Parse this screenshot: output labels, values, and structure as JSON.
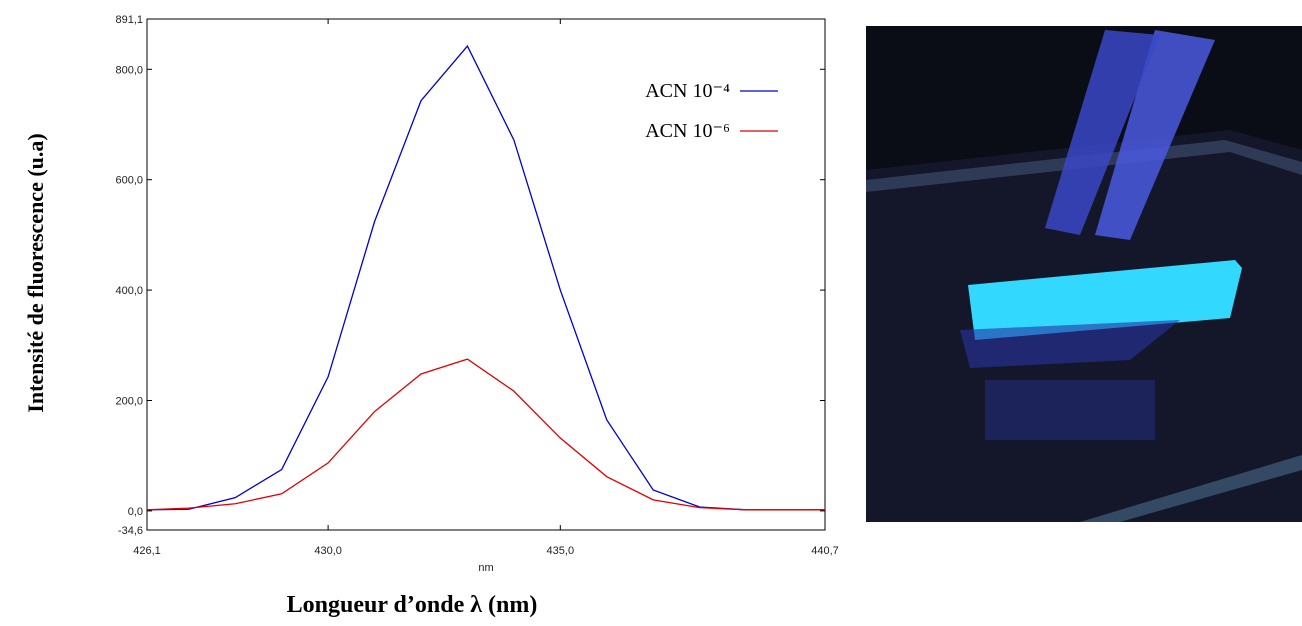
{
  "chart_data": {
    "type": "line",
    "ylabel": "Intensité de fluorescence (u.a)",
    "xlabel": "Longueur d’onde λ (nm)",
    "x_unit_label": "nm",
    "x": [
      426.1,
      427,
      428,
      429,
      430,
      431,
      432,
      433,
      434,
      435,
      436,
      437,
      438,
      439,
      440,
      440.7
    ],
    "series": [
      {
        "name": "ACN 10⁻⁴",
        "color": "#0000cc",
        "values": [
          2,
          3,
          24,
          75,
          243,
          524,
          743,
          842,
          672,
          400,
          165,
          38,
          7,
          2,
          2,
          2
        ]
      },
      {
        "name": "ACN 10⁻⁶",
        "color": "#e00000",
        "values": [
          2,
          5,
          13,
          31,
          87,
          180,
          248,
          275,
          217,
          132,
          62,
          20,
          6,
          2,
          2,
          2
        ]
      }
    ],
    "xlim": [
      426.1,
      440.7
    ],
    "xticks": [
      {
        "value": 426.1,
        "label": "426,1"
      },
      {
        "value": 430,
        "label": "430,0"
      },
      {
        "value": 435,
        "label": "435,0"
      },
      {
        "value": 440.7,
        "label": "440,7"
      }
    ],
    "ylim": [
      -34.6,
      891.1
    ],
    "yticks": [
      {
        "value": -34.6,
        "label": "-34,6"
      },
      {
        "value": 0,
        "label": "0,0"
      },
      {
        "value": 200,
        "label": "200,0"
      },
      {
        "value": 400,
        "label": "400,0"
      },
      {
        "value": 600,
        "label": "600,0"
      },
      {
        "value": 800,
        "label": "800,0"
      },
      {
        "value": 891.1,
        "label": "891,1"
      }
    ],
    "legend": "upper right"
  }
}
